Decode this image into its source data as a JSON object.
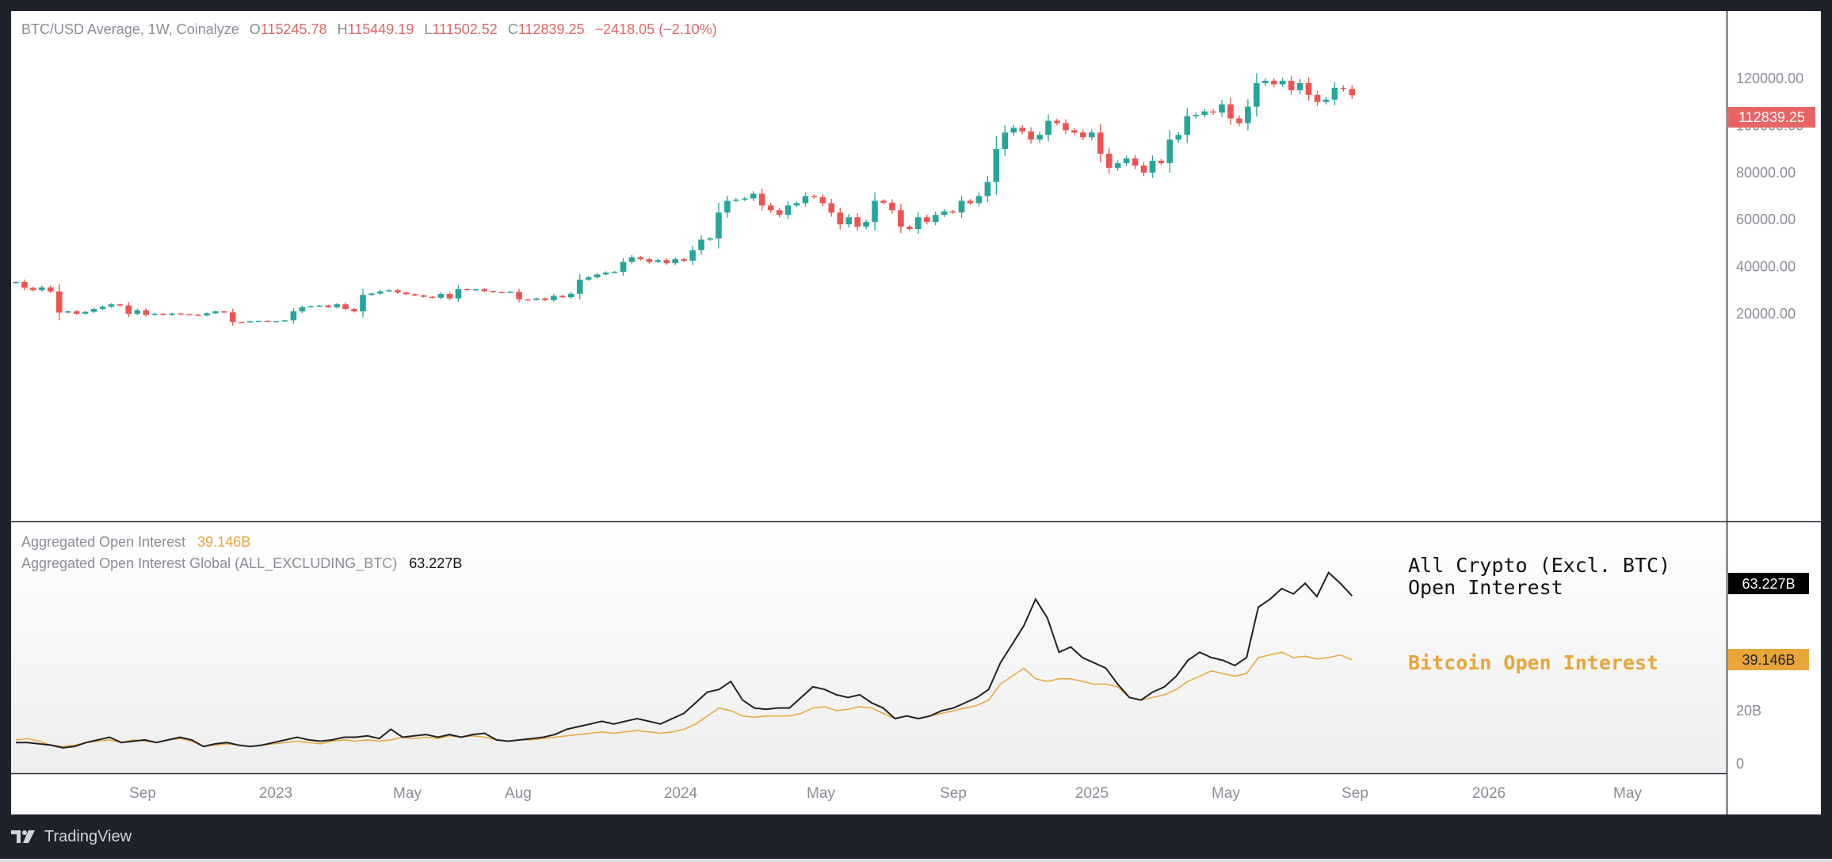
{
  "header": {
    "symbol": "BTC/USD Average, 1W, Coinalyze",
    "o_label": "O",
    "o_value": "115245.78",
    "h_label": "H",
    "h_value": "115449.19",
    "l_label": "L",
    "l_value": "111502.52",
    "c_label": "C",
    "c_value": "112839.25",
    "change": "−2418.05 (−2.10%)"
  },
  "legend": {
    "row1_name": "Aggregated Open Interest",
    "row1_value": "39.146B",
    "row2_name": "Aggregated Open Interest Global (ALL_EXCLUDING_BTC)",
    "row2_value": "63.227B"
  },
  "annotations": {
    "crypto_line1": "All Crypto (Excl. BTC)",
    "crypto_line2": "Open Interest",
    "btc": "Bitcoin Open Interest"
  },
  "price_axis": {
    "ticks": [
      "120000.00",
      "100000.00",
      "80000.00",
      "60000.00",
      "40000.00",
      "20000.00"
    ],
    "last_price_badge": "112839.25"
  },
  "oi_axis": {
    "ticks": [
      "20B",
      "0"
    ],
    "crypto_badge": "63.227B",
    "btc_badge": "39.146B"
  },
  "time_axis": [
    "Sep",
    "2023",
    "May",
    "Aug",
    "2024",
    "May",
    "Sep",
    "2025",
    "May",
    "Sep",
    "2026",
    "May"
  ],
  "branding": {
    "name": "TradingView"
  },
  "colors": {
    "up": "#26a69a",
    "down": "#ef5350",
    "crypto_line": "#222222",
    "btc_line": "#e8a53a",
    "badge_red": "#e86464",
    "badge_orange": "#e8a53a",
    "badge_black": "#000000",
    "frame": "#1e222d"
  },
  "chart_data": [
    {
      "type": "candlestick",
      "title": "BTC/USD Average, 1W, Coinalyze",
      "ylim": [
        0,
        130000
      ],
      "y_ticks": [
        20000,
        40000,
        60000,
        80000,
        100000,
        120000
      ],
      "x_ticks": [
        "Sep",
        "2023",
        "May",
        "Aug",
        "2024",
        "May",
        "Sep",
        "2025",
        "May",
        "Sep",
        "2026",
        "May"
      ],
      "weekly_closes": [
        33500,
        31000,
        30000,
        31200,
        29500,
        20500,
        21000,
        20000,
        20800,
        22000,
        23000,
        24000,
        23500,
        20000,
        21500,
        19500,
        20000,
        19500,
        20100,
        19800,
        19600,
        19300,
        20200,
        21000,
        20600,
        16500,
        16300,
        16800,
        17000,
        16700,
        16900,
        17200,
        21000,
        22800,
        23200,
        23500,
        22800,
        24000,
        22000,
        21000,
        28000,
        28600,
        29500,
        30000,
        29000,
        28300,
        27800,
        27200,
        26800,
        28400,
        26500,
        30500,
        30200,
        30400,
        29600,
        29200,
        29100,
        29300,
        26100,
        25900,
        26500,
        25800,
        27600,
        27000,
        28500,
        34500,
        35500,
        36700,
        37500,
        37800,
        42000,
        44000,
        43200,
        42000,
        42800,
        41500,
        43200,
        42500,
        47000,
        51500,
        52000,
        63000,
        68000,
        68500,
        69000,
        71000,
        66000,
        64000,
        62000,
        66000,
        67000,
        70000,
        69500,
        67000,
        63000,
        58000,
        61000,
        57000,
        59000,
        68000,
        67200,
        64000,
        57000,
        56000,
        61000,
        59000,
        62000,
        63500,
        63000,
        68000,
        67000,
        70000,
        76000,
        90000,
        97000,
        99000,
        97500,
        94000,
        96000,
        102000,
        101000,
        98000,
        97000,
        95000,
        97000,
        88000,
        82000,
        84000,
        86000,
        83000,
        80000,
        85000,
        84000,
        94000,
        96000,
        104000,
        104500,
        106000,
        105500,
        109000,
        103000,
        101000,
        108000,
        118000,
        119000,
        117500,
        119000,
        115000,
        118000,
        113000,
        110000,
        111000,
        116000,
        115500,
        112839.25
      ]
    },
    {
      "type": "line",
      "y_ticks": [
        "20B",
        "0"
      ],
      "series": [
        {
          "name": "Aggregated Open Interest",
          "last_value": "39.146B",
          "values_b": [
            9,
            9.5,
            8.5,
            7,
            6.5,
            7,
            8,
            8.5,
            9,
            8,
            9,
            8.5,
            8,
            9,
            9.5,
            8.5,
            6.5,
            7,
            7.5,
            7,
            6.5,
            7,
            7.5,
            8,
            8.5,
            8,
            7.5,
            8.5,
            9,
            8.5,
            9,
            8.5,
            9,
            10,
            9.5,
            10,
            9.5,
            10.5,
            10,
            10.5,
            10,
            9,
            8.5,
            9,
            9,
            9.5,
            10,
            10.5,
            11,
            11.5,
            12,
            11.5,
            12,
            12.5,
            12,
            11.5,
            12,
            13,
            15,
            18,
            21,
            20,
            18,
            17.5,
            18,
            18,
            18,
            19,
            21,
            21.5,
            20,
            20.5,
            21.5,
            21,
            19,
            17,
            18,
            17,
            18,
            19,
            20,
            21,
            22,
            24,
            30,
            33,
            36,
            32,
            31,
            32,
            32,
            31,
            30,
            30,
            29,
            25,
            24,
            25,
            26,
            28,
            31,
            33,
            35,
            34,
            33,
            34,
            40,
            41,
            42,
            40,
            40.5,
            39.5,
            40,
            41,
            39.146
          ]
        },
        {
          "name": "Aggregated Open Interest Global (ALL_EXCLUDING_BTC)",
          "last_value": "63.227B",
          "values_b": [
            8,
            8,
            7.5,
            7,
            6,
            6.5,
            8,
            9,
            10,
            8,
            8.5,
            9,
            8,
            9,
            10,
            9,
            6.5,
            7.5,
            8,
            7,
            6.5,
            7,
            8,
            9,
            10,
            9,
            8.5,
            9,
            10,
            10,
            10.5,
            9.5,
            13,
            10,
            10.5,
            11,
            10,
            11,
            10,
            11,
            11.5,
            9,
            8.5,
            9,
            9.5,
            10,
            11,
            13,
            14,
            15,
            16,
            15,
            16,
            17,
            16,
            15,
            17,
            19,
            23,
            27,
            28,
            31,
            24,
            21,
            20.5,
            21,
            21,
            25,
            29,
            28,
            26,
            25,
            26,
            23,
            21,
            17,
            18,
            17,
            18,
            20,
            21,
            23,
            25,
            28,
            38,
            45,
            52,
            62,
            55,
            42,
            44,
            40,
            38,
            36,
            30,
            25,
            24,
            27,
            29,
            33,
            39,
            42,
            40,
            39,
            37,
            40,
            59,
            62,
            66,
            64,
            68,
            63,
            72,
            68,
            63.227
          ]
        }
      ]
    }
  ]
}
